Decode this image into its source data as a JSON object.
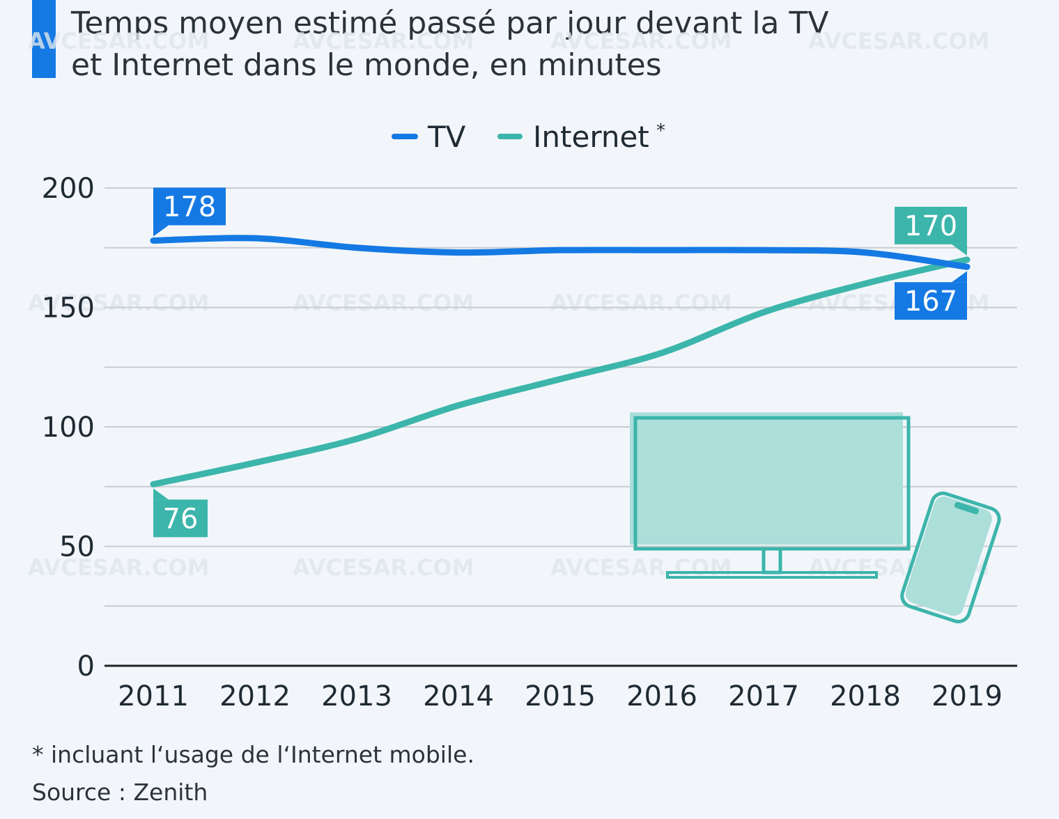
{
  "title_lines": [
    "Temps moyen estimé passé par jour devant la TV",
    "et Internet dans le monde, en minutes"
  ],
  "colors": {
    "tv": "#1479e3",
    "internet": "#3cb5ab",
    "grid": "#c7ccd1",
    "axis": "#222222",
    "text": "#2b3338",
    "background": "#f2f6fa",
    "screen_fill": "#acdeda"
  },
  "legend": {
    "tv": "TV",
    "internet": "Internet",
    "internet_marker": "*"
  },
  "footnote": "* incluant l‘usage de l‘Internet mobile.",
  "source": "Source : Zenith",
  "watermark": "AVCESAR.COM",
  "chart_data": {
    "type": "line",
    "title": "Temps moyen estimé passé par jour devant la TV et Internet dans le monde, en minutes",
    "xlabel": "",
    "ylabel": "",
    "x": [
      "2011",
      "2012",
      "2013",
      "2014",
      "2015",
      "2016",
      "2017",
      "2018",
      "2019"
    ],
    "ylim": [
      0,
      200
    ],
    "yticks": [
      0,
      50,
      100,
      150,
      200
    ],
    "grid": true,
    "legend_position": "top-center",
    "series": [
      {
        "name": "TV",
        "values": [
          178,
          179,
          175,
          173,
          174,
          174,
          174,
          173,
          167
        ]
      },
      {
        "name": "Internet",
        "values": [
          76,
          85,
          95,
          109,
          120,
          131,
          148,
          160,
          170
        ]
      }
    ],
    "data_labels": [
      {
        "series": "TV",
        "x": "2011",
        "text": "178"
      },
      {
        "series": "Internet",
        "x": "2019",
        "text": "170"
      },
      {
        "series": "TV",
        "x": "2019",
        "text": "167"
      },
      {
        "series": "Internet",
        "x": "2011",
        "text": "76"
      }
    ]
  }
}
